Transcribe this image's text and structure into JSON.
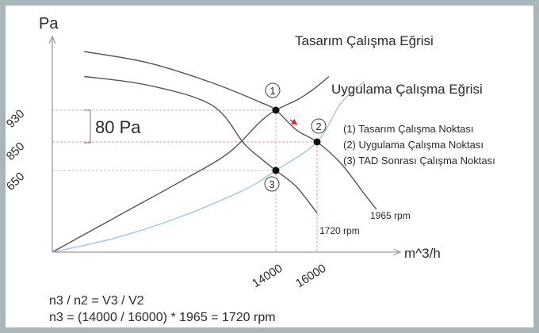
{
  "chart_data": {
    "type": "line",
    "title": "",
    "xlabel": "m^3/h",
    "ylabel": "Pa",
    "y_ticks": [
      {
        "label": "930",
        "value": 930
      },
      {
        "label": "850",
        "value": 850
      },
      {
        "label": "650",
        "value": 650
      }
    ],
    "x_ticks": [
      {
        "label": "14000",
        "value": 14000
      },
      {
        "label": "16000",
        "value": 16000
      }
    ],
    "series": [
      {
        "name": "Tasarım Çalışma Eğrisi",
        "kind": "system",
        "color": "#555555",
        "x": [
          0,
          4000,
          8000,
          11000,
          13000,
          14000,
          15000,
          15500,
          16000,
          16500
        ],
        "y": [
          0,
          280,
          560,
          770,
          900,
          930,
          1010,
          1060,
          1120,
          1200
        ]
      },
      {
        "name": "Uygulama Çalışma Eğrisi",
        "kind": "system",
        "color": "#9dc7de",
        "x": [
          0,
          4000,
          8000,
          12000,
          14000,
          16000,
          17000,
          18000
        ],
        "y": [
          0,
          115,
          280,
          495,
          650,
          850,
          985,
          1160
        ]
      },
      {
        "name": "1965 rpm",
        "kind": "fan",
        "color": "#555555",
        "x": [
          2000,
          6000,
          10000,
          13000,
          14000,
          15000,
          16000,
          17000,
          18000,
          18500
        ],
        "y": [
          1400,
          1310,
          1150,
          995,
          930,
          880,
          850,
          700,
          460,
          340
        ]
      },
      {
        "name": "1720 rpm",
        "kind": "fan",
        "color": "#555555",
        "x": [
          2000,
          6000,
          10000,
          12000,
          13000,
          14000,
          15000,
          16000
        ],
        "y": [
          1200,
          1130,
          970,
          840,
          740,
          650,
          520,
          310
        ]
      }
    ],
    "points": [
      {
        "label": "1",
        "x": 14000,
        "y": 930
      },
      {
        "label": "2",
        "x": 16000,
        "y": 850
      },
      {
        "label": "3",
        "x": 14000,
        "y": 650
      }
    ],
    "annotations": {
      "delta_label": "80 Pa",
      "legend": [
        "(1) Tasarım Çalışma Noktası",
        "(2) Uygulama Çalışma Noktası",
        "(3) TAD Sonrası Çalışma Noktası"
      ],
      "formula_1": "n3 / n2 = V3 / V2",
      "formula_2": "n3 = (14000 / 16000) * 1965 = 1720 rpm"
    },
    "colors": {
      "axis": "#9a9a9a",
      "design_guide": "#b8b8d8",
      "apply_guide": "#f09a80",
      "arrow": "#d03030",
      "frame": "#a9b7ba"
    }
  }
}
